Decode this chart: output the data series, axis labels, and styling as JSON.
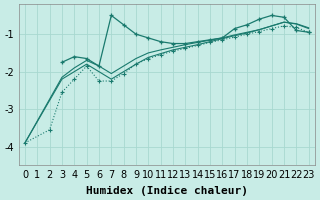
{
  "xlabel": "Humidex (Indice chaleur)",
  "bg_color": "#c8ece6",
  "line_color": "#1a7a6e",
  "grid_color": "#a8d8d0",
  "xlim": [
    -0.5,
    23.5
  ],
  "ylim": [
    -4.5,
    -0.2
  ],
  "xticks": [
    0,
    1,
    2,
    3,
    4,
    5,
    6,
    7,
    8,
    9,
    10,
    11,
    12,
    13,
    14,
    15,
    16,
    17,
    18,
    19,
    20,
    21,
    22,
    23
  ],
  "yticks": [
    -4,
    -3,
    -2,
    -1
  ],
  "dot_x": [
    0,
    2,
    3,
    4,
    5,
    6,
    7,
    8,
    9,
    10,
    11,
    12,
    13,
    14,
    15,
    16,
    17,
    18,
    19,
    20,
    21,
    22,
    23
  ],
  "dot_y": [
    -3.9,
    -3.55,
    -2.55,
    -2.2,
    -1.85,
    -2.25,
    -2.25,
    -2.05,
    -1.8,
    -1.65,
    -1.55,
    -1.45,
    -1.38,
    -1.3,
    -1.22,
    -1.15,
    -1.08,
    -1.0,
    -0.93,
    -0.85,
    -0.78,
    -0.82,
    -0.95
  ],
  "vol_x": [
    3,
    4,
    5,
    6,
    7,
    8,
    9,
    10,
    11,
    12,
    13,
    14,
    15,
    16,
    17,
    18,
    19,
    20,
    21,
    22,
    23
  ],
  "vol_y": [
    -1.75,
    -1.6,
    -1.65,
    -1.85,
    -0.5,
    -0.75,
    -1.0,
    -1.1,
    -1.2,
    -1.25,
    -1.25,
    -1.2,
    -1.15,
    -1.1,
    -0.85,
    -0.75,
    -0.6,
    -0.5,
    -0.55,
    -0.9,
    -0.95
  ],
  "sm1_x": [
    0,
    3,
    4,
    5,
    6,
    7,
    8,
    9,
    10,
    11,
    12,
    13,
    14,
    15,
    16,
    17,
    18,
    19,
    20,
    21,
    22,
    23
  ],
  "sm1_y": [
    -3.9,
    -2.15,
    -1.9,
    -1.7,
    -1.85,
    -2.05,
    -1.85,
    -1.65,
    -1.5,
    -1.42,
    -1.35,
    -1.28,
    -1.22,
    -1.16,
    -1.1,
    -1.02,
    -0.95,
    -0.88,
    -0.78,
    -0.68,
    -0.72,
    -0.83
  ],
  "sm2_x": [
    0,
    3,
    4,
    5,
    6,
    7,
    8,
    9,
    10,
    11,
    12,
    13,
    14,
    15,
    16,
    17,
    18,
    19,
    20,
    21,
    22,
    23
  ],
  "sm2_y": [
    -3.9,
    -2.2,
    -2.0,
    -1.8,
    -2.0,
    -2.2,
    -2.0,
    -1.8,
    -1.62,
    -1.52,
    -1.42,
    -1.35,
    -1.28,
    -1.2,
    -1.12,
    -1.04,
    -0.97,
    -0.88,
    -0.78,
    -0.68,
    -0.73,
    -0.85
  ],
  "xlabel_fontsize": 8,
  "tick_fontsize": 7
}
